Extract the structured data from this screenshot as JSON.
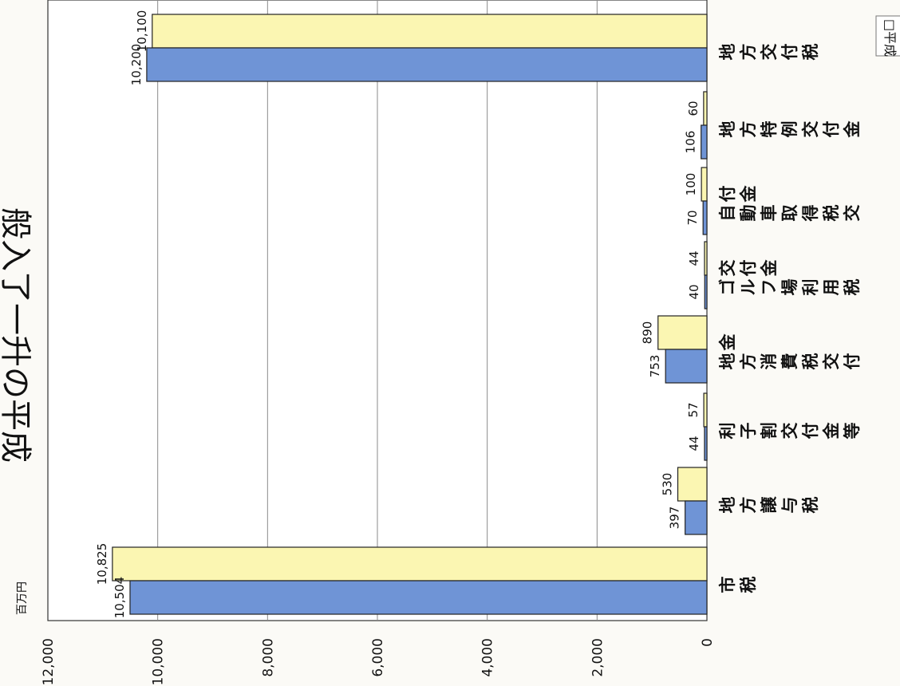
{
  "chart_data": {
    "type": "bar",
    "orientation": "horizontal-rotated",
    "unit": "百万円",
    "categories": [
      "市税",
      "地方譲与税",
      "利子割交付金等",
      "地方消費税交付金",
      "ゴルフ場利用税交付金",
      "自動車取得税交付金",
      "地方特例交付金",
      "地方交付税"
    ],
    "series": [
      {
        "name": "",
        "color": "#6f94d6",
        "values": [
          10504,
          397,
          44,
          753,
          40,
          70,
          106,
          10200
        ],
        "labels": [
          "10,504",
          "397",
          "44",
          "753",
          "40",
          "70",
          "106",
          "10,200"
        ]
      },
      {
        "name": "",
        "color": "#fbf6b2",
        "values": [
          10825,
          530,
          57,
          890,
          44,
          100,
          60,
          10100
        ],
        "labels": [
          "10,825",
          "530",
          "57",
          "890",
          "44",
          "100",
          "60",
          "10,100"
        ]
      }
    ],
    "axis_ticks": [
      "0",
      "2,000",
      "4,000",
      "6,000",
      "8,000",
      "10,000",
      "12,000"
    ],
    "ylim": [
      0,
      12000
    ],
    "grid": true,
    "legend_visible_text": "□平成",
    "partial_title": "般入了一升の平成"
  }
}
